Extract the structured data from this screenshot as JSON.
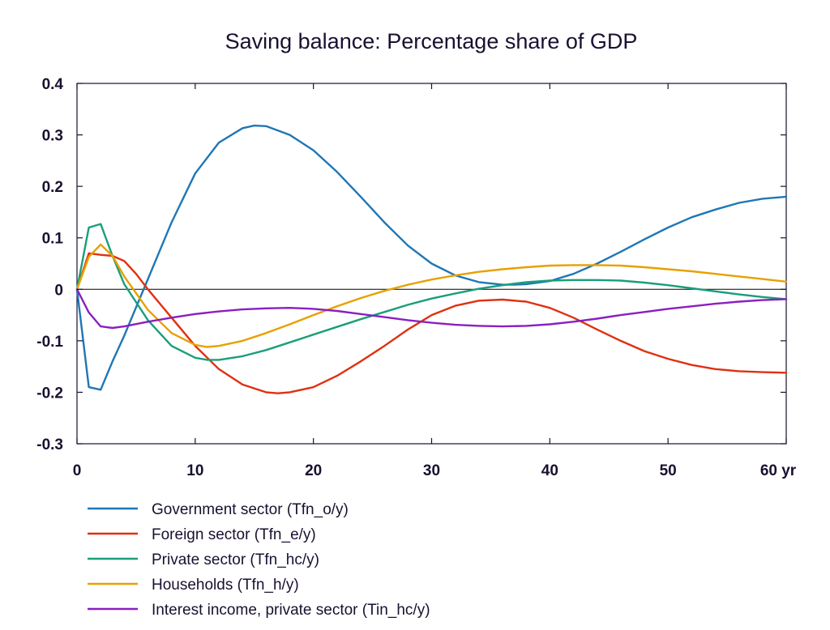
{
  "chart_data": {
    "type": "line",
    "title": "Saving balance: Percentage share of GDP",
    "xlabel": "",
    "ylabel": "",
    "xlim": [
      0,
      60
    ],
    "ylim": [
      -0.3,
      0.4
    ],
    "x_ticks": [
      0,
      10,
      20,
      30,
      40,
      50,
      60
    ],
    "x_tick_labels": [
      "0",
      "10",
      "20",
      "30",
      "40",
      "50",
      "60 yr"
    ],
    "y_ticks": [
      -0.3,
      -0.2,
      -0.1,
      0,
      0.1,
      0.2,
      0.3,
      0.4
    ],
    "y_tick_labels": [
      "-0.3",
      "-0.2",
      "-0.1",
      "0",
      "0.1",
      "0.2",
      "0.3",
      "0.4"
    ],
    "grid": false,
    "legend_position": "bottom",
    "series": [
      {
        "name": "Government sector (Tfn_o/y)",
        "color": "#1f77b4",
        "x": [
          0,
          1,
          2,
          3,
          4,
          5,
          6,
          7,
          8,
          10,
          12,
          14,
          15,
          16,
          18,
          20,
          22,
          24,
          26,
          28,
          30,
          32,
          34,
          36,
          37,
          38,
          40,
          42,
          44,
          46,
          48,
          50,
          52,
          54,
          56,
          58,
          60
        ],
        "y": [
          0,
          -0.19,
          -0.195,
          -0.14,
          -0.09,
          -0.035,
          0.02,
          0.075,
          0.13,
          0.225,
          0.285,
          0.313,
          0.318,
          0.317,
          0.3,
          0.27,
          0.228,
          0.18,
          0.13,
          0.085,
          0.05,
          0.027,
          0.014,
          0.009,
          0.009,
          0.01,
          0.016,
          0.03,
          0.05,
          0.073,
          0.097,
          0.12,
          0.14,
          0.155,
          0.168,
          0.176,
          0.18
        ]
      },
      {
        "name": "Foreign sector (Tfn_e/y)",
        "color": "#e03010",
        "x": [
          0,
          1,
          2,
          3,
          4,
          5,
          6,
          8,
          10,
          12,
          14,
          16,
          17,
          18,
          20,
          22,
          24,
          26,
          28,
          30,
          32,
          34,
          36,
          38,
          40,
          42,
          44,
          46,
          48,
          50,
          52,
          54,
          56,
          58,
          60
        ],
        "y": [
          0,
          0.07,
          0.067,
          0.065,
          0.055,
          0.03,
          0.0,
          -0.055,
          -0.11,
          -0.155,
          -0.185,
          -0.2,
          -0.202,
          -0.2,
          -0.19,
          -0.168,
          -0.14,
          -0.11,
          -0.078,
          -0.05,
          -0.032,
          -0.022,
          -0.02,
          -0.024,
          -0.036,
          -0.055,
          -0.078,
          -0.1,
          -0.12,
          -0.135,
          -0.147,
          -0.155,
          -0.159,
          -0.161,
          -0.162
        ]
      },
      {
        "name": "Private sector (Tfn_hc/y)",
        "color": "#1a9e7a",
        "x": [
          0,
          1,
          2,
          3,
          4,
          6,
          8,
          10,
          11,
          12,
          14,
          16,
          18,
          20,
          22,
          24,
          26,
          28,
          30,
          32,
          34,
          36,
          38,
          40,
          42,
          44,
          46,
          48,
          50,
          52,
          54,
          56,
          58,
          60
        ],
        "y": [
          0,
          0.12,
          0.127,
          0.065,
          0.01,
          -0.06,
          -0.11,
          -0.133,
          -0.137,
          -0.137,
          -0.13,
          -0.118,
          -0.103,
          -0.088,
          -0.073,
          -0.058,
          -0.044,
          -0.03,
          -0.018,
          -0.008,
          0.001,
          0.008,
          0.014,
          0.017,
          0.018,
          0.018,
          0.017,
          0.013,
          0.008,
          0.002,
          -0.004,
          -0.01,
          -0.015,
          -0.019
        ]
      },
      {
        "name": "Households (Tfn_h/y)",
        "color": "#e8a000",
        "x": [
          0,
          1,
          2,
          3,
          4,
          6,
          8,
          10,
          11,
          12,
          14,
          16,
          18,
          20,
          22,
          24,
          26,
          28,
          30,
          32,
          34,
          36,
          38,
          40,
          42,
          44,
          46,
          48,
          50,
          52,
          54,
          56,
          58,
          60
        ],
        "y": [
          0,
          0.063,
          0.087,
          0.065,
          0.025,
          -0.04,
          -0.085,
          -0.108,
          -0.112,
          -0.11,
          -0.1,
          -0.085,
          -0.068,
          -0.05,
          -0.033,
          -0.017,
          -0.003,
          0.009,
          0.019,
          0.027,
          0.034,
          0.039,
          0.043,
          0.046,
          0.047,
          0.047,
          0.046,
          0.043,
          0.039,
          0.035,
          0.03,
          0.025,
          0.02,
          0.015
        ]
      },
      {
        "name": "Interest income, private sector (Tin_hc/y)",
        "color": "#8a1fc0",
        "x": [
          0,
          1,
          2,
          3,
          4,
          6,
          8,
          10,
          12,
          14,
          16,
          18,
          20,
          22,
          24,
          26,
          28,
          30,
          32,
          34,
          36,
          38,
          40,
          42,
          44,
          46,
          48,
          50,
          52,
          54,
          56,
          58,
          60
        ],
        "y": [
          0,
          -0.045,
          -0.072,
          -0.075,
          -0.072,
          -0.063,
          -0.055,
          -0.048,
          -0.043,
          -0.039,
          -0.037,
          -0.036,
          -0.038,
          -0.042,
          -0.048,
          -0.054,
          -0.06,
          -0.065,
          -0.069,
          -0.071,
          -0.072,
          -0.071,
          -0.068,
          -0.063,
          -0.057,
          -0.05,
          -0.044,
          -0.038,
          -0.033,
          -0.028,
          -0.024,
          -0.021,
          -0.019
        ]
      }
    ]
  }
}
